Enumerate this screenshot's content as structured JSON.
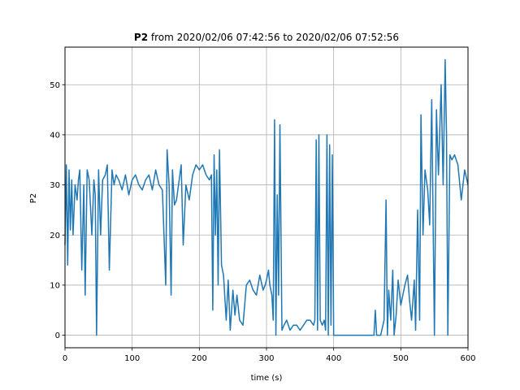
{
  "chart_data": {
    "type": "line",
    "title_bold": "P2",
    "title_rest": " from 2020/02/06 07:42:56 to 2020/02/06 07:52:56",
    "xlabel": "time (s)",
    "ylabel": "P2",
    "xlim": [
      0,
      600
    ],
    "ylim": [
      -2.5,
      57.5
    ],
    "xticks": [
      0,
      100,
      200,
      300,
      400,
      500,
      600
    ],
    "yticks": [
      0,
      10,
      20,
      30,
      40,
      50
    ],
    "grid": true,
    "line_color": "#1f77b4",
    "series": [
      {
        "x": [
          0,
          2,
          4,
          6,
          8,
          10,
          12,
          15,
          18,
          20,
          22,
          25,
          28,
          30,
          33,
          36,
          40,
          43,
          45,
          47,
          50,
          53,
          56,
          60,
          63,
          66,
          70,
          73,
          76,
          80,
          85,
          90,
          95,
          100,
          105,
          110,
          115,
          120,
          125,
          130,
          135,
          140,
          145,
          150,
          152,
          155,
          158,
          160,
          163,
          166,
          170,
          173,
          176,
          180,
          185,
          190,
          195,
          200,
          205,
          210,
          215,
          218,
          220,
          222,
          224,
          226,
          228,
          230,
          233,
          236,
          240,
          243,
          246,
          250,
          253,
          256,
          260,
          265,
          270,
          275,
          280,
          285,
          290,
          295,
          298,
          300,
          303,
          305,
          308,
          310,
          312,
          314,
          316,
          318,
          320,
          323,
          326,
          330,
          335,
          340,
          345,
          350,
          355,
          360,
          365,
          370,
          372,
          374,
          376,
          378,
          380,
          383,
          386,
          388,
          390,
          392,
          394,
          396,
          398,
          400,
          410,
          420,
          430,
          440,
          450,
          460,
          462,
          464,
          470,
          475,
          478,
          480,
          482,
          485,
          488,
          490,
          493,
          496,
          500,
          503,
          506,
          510,
          513,
          516,
          520,
          522,
          525,
          528,
          530,
          533,
          536,
          540,
          543,
          546,
          550,
          553,
          556,
          560,
          563,
          566,
          568,
          570,
          573,
          576,
          580,
          585,
          590,
          595,
          600
        ],
        "values": [
          18,
          34,
          14,
          33,
          21,
          31,
          20,
          30,
          27,
          31,
          33,
          13,
          30,
          8,
          33,
          31,
          20,
          31,
          28,
          0,
          33,
          20,
          31,
          32,
          34,
          13,
          33,
          30,
          32,
          31,
          29,
          32,
          28,
          31,
          32,
          30,
          29,
          31,
          32,
          29,
          33,
          30,
          29,
          10,
          37,
          30,
          8,
          33,
          26,
          27,
          31,
          34,
          18,
          30,
          27,
          32,
          34,
          33,
          34,
          32,
          31,
          32,
          5,
          36,
          20,
          33,
          10,
          37,
          14,
          12,
          3,
          11,
          1,
          9,
          4,
          8,
          3,
          2,
          10,
          11,
          9,
          8,
          12,
          9,
          10,
          11,
          13,
          10,
          8,
          3,
          43,
          0,
          28,
          8,
          42,
          1,
          2,
          3,
          1,
          2,
          2,
          1,
          2,
          3,
          3,
          2,
          3,
          39,
          1,
          40,
          3,
          2,
          3,
          1,
          40,
          0,
          38,
          2,
          36,
          0,
          0,
          0,
          0,
          0,
          0,
          0,
          5,
          0,
          0,
          3,
          27,
          0,
          9,
          3,
          13,
          0,
          4,
          11,
          6,
          8,
          10,
          12,
          7,
          3,
          11,
          1,
          25,
          3,
          44,
          20,
          33,
          29,
          22,
          47,
          0,
          45,
          32,
          50,
          30,
          55,
          40,
          0,
          36,
          35,
          36,
          34,
          27,
          33,
          30
        ]
      }
    ]
  }
}
